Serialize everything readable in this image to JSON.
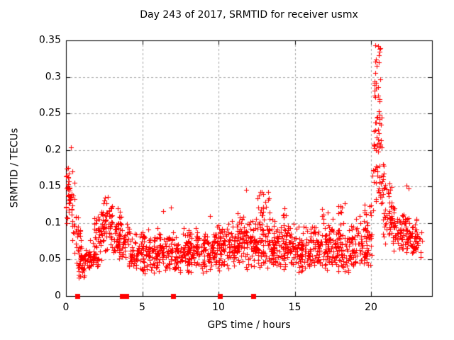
{
  "chart_data": {
    "type": "scatter",
    "title": "Day 243 of 2017, SRMTID for receiver usmx",
    "xlabel": "GPS time / hours",
    "ylabel": "SRMTID / TECUs",
    "xlim": [
      0,
      24
    ],
    "ylim": [
      0,
      0.35
    ],
    "xticks": [
      {
        "v": 0,
        "label": "0"
      },
      {
        "v": 5,
        "label": "5"
      },
      {
        "v": 10,
        "label": "10"
      },
      {
        "v": 15,
        "label": "15"
      },
      {
        "v": 20,
        "label": "20"
      }
    ],
    "yticks": [
      {
        "v": 0,
        "label": "0"
      },
      {
        "v": 0.05,
        "label": "0.05"
      },
      {
        "v": 0.1,
        "label": "0.1"
      },
      {
        "v": 0.15,
        "label": "0.15"
      },
      {
        "v": 0.2,
        "label": "0.2"
      },
      {
        "v": 0.25,
        "label": "0.25"
      },
      {
        "v": 0.3,
        "label": "0.3"
      },
      {
        "v": 0.35,
        "label": "0.35"
      }
    ],
    "grid": true,
    "legend": null,
    "marker": {
      "glyph": "plus",
      "size": 7,
      "color": "#ff0000"
    },
    "colors": {
      "background": "#ffffff",
      "border": "#000000",
      "grid": "#a6a6a6",
      "marker": "#ff0000",
      "text": "#000000"
    },
    "seed": 42,
    "bins_format": [
      "x_start_hours",
      "x_end_hours",
      "n_points",
      "y_min_TECU",
      "y_max_TECU",
      "low_bias_exponent"
    ],
    "points_bins": [
      [
        0.0,
        0.25,
        22,
        0.085,
        0.205,
        1.0
      ],
      [
        0.1,
        0.55,
        18,
        0.1,
        0.175,
        1.0
      ],
      [
        0.35,
        0.85,
        16,
        0.065,
        0.145,
        1.1
      ],
      [
        0.55,
        1.05,
        22,
        0.042,
        0.095,
        1.1
      ],
      [
        0.75,
        1.65,
        55,
        0.024,
        0.068,
        1.1
      ],
      [
        1.45,
        2.15,
        38,
        0.03,
        0.082,
        1.1
      ],
      [
        1.85,
        2.45,
        30,
        0.048,
        0.125,
        1.1
      ],
      [
        2.25,
        3.05,
        50,
        0.055,
        0.148,
        1.05
      ],
      [
        2.85,
        3.55,
        42,
        0.048,
        0.128,
        1.1
      ],
      [
        3.35,
        4.25,
        48,
        0.04,
        0.112,
        1.15
      ],
      [
        4.1,
        5.1,
        68,
        0.03,
        0.092,
        1.15
      ],
      [
        5.0,
        6.0,
        72,
        0.03,
        0.096,
        1.15
      ],
      [
        6.0,
        7.0,
        72,
        0.03,
        0.103,
        1.15
      ],
      [
        7.0,
        8.1,
        78,
        0.028,
        0.098,
        1.15
      ],
      [
        8.0,
        9.1,
        76,
        0.03,
        0.094,
        1.15
      ],
      [
        9.0,
        10.05,
        78,
        0.032,
        0.1,
        1.15
      ],
      [
        10.0,
        11.05,
        82,
        0.035,
        0.108,
        1.12
      ],
      [
        11.0,
        12.05,
        82,
        0.035,
        0.115,
        1.12
      ],
      [
        12.0,
        13.0,
        80,
        0.035,
        0.118,
        1.12
      ],
      [
        12.55,
        12.95,
        13,
        0.095,
        0.155,
        1.0
      ],
      [
        13.0,
        14.0,
        78,
        0.034,
        0.11,
        1.12
      ],
      [
        13.05,
        13.4,
        6,
        0.112,
        0.148,
        1.0
      ],
      [
        14.0,
        15.0,
        78,
        0.032,
        0.105,
        1.12
      ],
      [
        14.15,
        14.6,
        5,
        0.1,
        0.126,
        1.0
      ],
      [
        15.0,
        16.0,
        76,
        0.03,
        0.1,
        1.15
      ],
      [
        16.0,
        17.05,
        78,
        0.033,
        0.105,
        1.12
      ],
      [
        16.75,
        17.25,
        5,
        0.1,
        0.124,
        1.0
      ],
      [
        17.0,
        18.0,
        78,
        0.03,
        0.108,
        1.12
      ],
      [
        17.85,
        18.45,
        8,
        0.098,
        0.136,
        1.0
      ],
      [
        18.0,
        19.0,
        74,
        0.03,
        0.1,
        1.15
      ],
      [
        19.0,
        20.05,
        72,
        0.038,
        0.112,
        1.1
      ],
      [
        19.55,
        20.15,
        10,
        0.088,
        0.13,
        1.0
      ],
      [
        20.25,
        20.62,
        9,
        0.298,
        0.345,
        1.0
      ],
      [
        20.2,
        20.65,
        13,
        0.258,
        0.3,
        1.0
      ],
      [
        20.2,
        20.7,
        15,
        0.22,
        0.26,
        1.0
      ],
      [
        20.15,
        20.75,
        17,
        0.188,
        0.222,
        1.0
      ],
      [
        20.1,
        20.9,
        21,
        0.15,
        0.19,
        1.0
      ],
      [
        20.3,
        21.45,
        28,
        0.115,
        0.158,
        1.0
      ],
      [
        20.8,
        21.6,
        42,
        0.07,
        0.132,
        1.1
      ],
      [
        21.4,
        22.45,
        66,
        0.058,
        0.122,
        1.1
      ],
      [
        22.25,
        23.1,
        56,
        0.055,
        0.118,
        1.1
      ],
      [
        22.95,
        23.35,
        10,
        0.052,
        0.1,
        1.1
      ]
    ],
    "notable_points": [
      [
        0.33,
        0.204
      ],
      [
        6.35,
        0.116
      ],
      [
        6.9,
        0.121
      ],
      [
        9.42,
        0.11
      ],
      [
        11.8,
        0.145
      ],
      [
        20.47,
        0.342
      ],
      [
        20.55,
        0.338
      ],
      [
        22.32,
        0.151
      ],
      [
        22.48,
        0.147
      ]
    ],
    "zero_marker_xs": [
      0.76,
      3.68,
      3.95,
      7.0,
      10.1,
      12.3
    ]
  }
}
